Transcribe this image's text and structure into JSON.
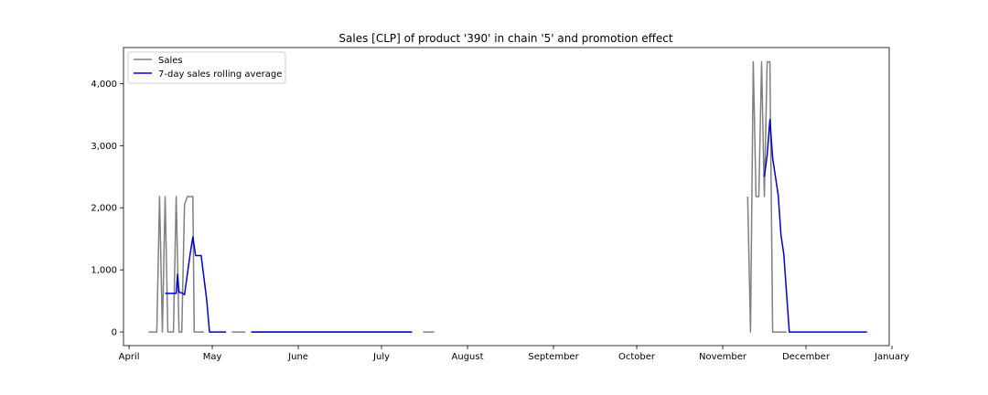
{
  "chart_data": {
    "type": "line",
    "title": "Sales [CLP] of product '390' in chain '5' and promotion effect",
    "xlabel": "",
    "ylabel": "",
    "x_tick_labels": [
      "April",
      "May",
      "June",
      "July",
      "August",
      "September",
      "October",
      "November",
      "December",
      "January"
    ],
    "y_tick_labels": [
      "0",
      "1,000",
      "2,000",
      "3,000",
      "4,000"
    ],
    "y_ticks": [
      0,
      1000,
      2000,
      3000,
      4000
    ],
    "ylim": [
      -220,
      4580
    ],
    "xlim": [
      -2,
      274
    ],
    "x_unit": "days since April 1",
    "grid": false,
    "legend": {
      "placement": "top-left",
      "entries": [
        "Sales",
        "7-day sales rolling average"
      ]
    },
    "colors": {
      "sales": "#808080",
      "rolling": "#0000cc"
    },
    "series": [
      {
        "name": "Sales",
        "segments": [
          [
            [
              7,
              0
            ],
            [
              10,
              0
            ],
            [
              11,
              2180
            ],
            [
              12,
              0
            ],
            [
              13,
              2180
            ],
            [
              14,
              0
            ],
            [
              15,
              0
            ],
            [
              16,
              0
            ],
            [
              17,
              2180
            ],
            [
              18,
              0
            ],
            [
              19,
              0
            ],
            [
              20,
              2050
            ],
            [
              21,
              2180
            ],
            [
              23,
              2180
            ],
            [
              23.5,
              0
            ],
            [
              25,
              0
            ],
            [
              27,
              0
            ]
          ],
          [
            [
              37,
              0
            ],
            [
              42,
              0
            ]
          ],
          [
            [
              44,
              0
            ],
            [
              102,
              0
            ]
          ],
          [
            [
              106,
              0
            ],
            [
              110,
              0
            ]
          ],
          [
            [
              223,
              2180
            ],
            [
              224,
              0
            ],
            [
              225,
              4350
            ],
            [
              226,
              2180
            ],
            [
              227,
              2180
            ],
            [
              228,
              4350
            ],
            [
              229,
              2180
            ],
            [
              230,
              4350
            ],
            [
              231,
              4350
            ],
            [
              232,
              0
            ],
            [
              237,
              0
            ]
          ]
        ]
      },
      {
        "name": "7-day sales rolling average",
        "segments": [
          [
            [
              13,
              620
            ],
            [
              17,
              620
            ],
            [
              17.5,
              930
            ],
            [
              18,
              640
            ],
            [
              19,
              630
            ],
            [
              20,
              600
            ],
            [
              22,
              1250
            ],
            [
              23,
              1530
            ],
            [
              24,
              1230
            ],
            [
              26,
              1230
            ],
            [
              28,
              510
            ],
            [
              29,
              0
            ],
            [
              35,
              0
            ]
          ],
          [
            [
              44,
              0
            ],
            [
              102,
              0
            ]
          ],
          [
            [
              229,
              2500
            ],
            [
              230,
              2850
            ],
            [
              231,
              3420
            ],
            [
              232,
              2800
            ],
            [
              234,
              2200
            ],
            [
              235,
              1560
            ],
            [
              236,
              1250
            ],
            [
              238,
              0
            ],
            [
              266,
              0
            ]
          ]
        ]
      }
    ]
  }
}
